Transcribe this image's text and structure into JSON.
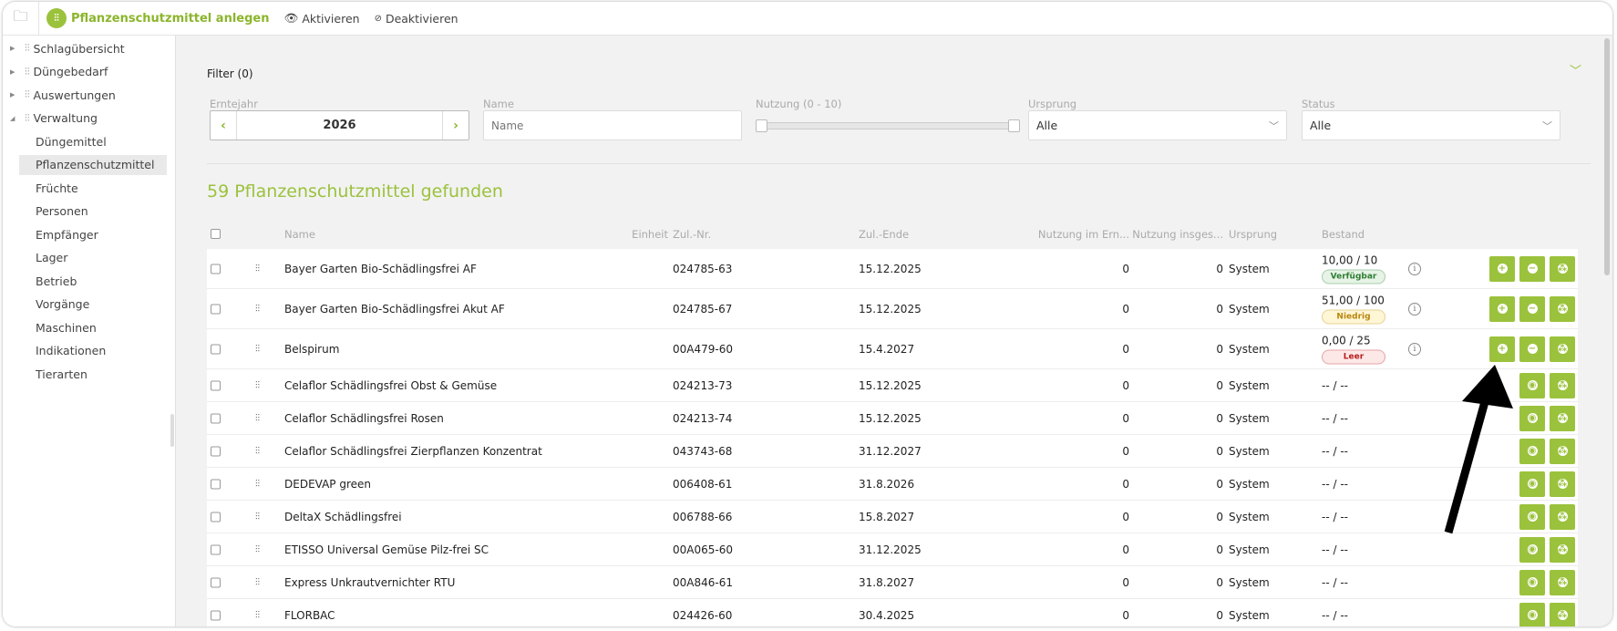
{
  "toolbar": {
    "create_label": "Pflanzenschutzmittel anlegen",
    "activate_label": "Aktivieren",
    "deactivate_label": "Deaktivieren"
  },
  "sidebar": {
    "groups": [
      {
        "label": "Schlagübersicht",
        "expanded": false
      },
      {
        "label": "Düngebedarf",
        "expanded": false
      },
      {
        "label": "Auswertungen",
        "expanded": false
      },
      {
        "label": "Verwaltung",
        "expanded": true
      }
    ],
    "items": [
      "Düngemittel",
      "Pflanzenschutzmittel",
      "Früchte",
      "Personen",
      "Empfänger",
      "Lager",
      "Betrieb",
      "Vorgänge",
      "Maschinen",
      "Indikationen",
      "Tierarten"
    ],
    "active": "Pflanzenschutzmittel"
  },
  "filter": {
    "title": "Filter (0)",
    "year_label": "Erntejahr",
    "year": "2026",
    "name_label": "Name",
    "name_placeholder": "Name",
    "name_value": "",
    "usage_label": "Nutzung (0 - 10)",
    "usage_range": [
      0,
      10
    ],
    "origin_label": "Ursprung",
    "origin_value": "Alle",
    "status_label": "Status",
    "status_value": "Alle"
  },
  "result_count": "59 Pflanzenschutzmittel gefunden",
  "table": {
    "headers": {
      "name": "Name",
      "unit": "Einheit",
      "reg_no": "Zul.-Nr.",
      "reg_end": "Zul.-Ende",
      "use_year": "Nutzung im Ern...",
      "use_total": "Nutzung insges...",
      "origin": "Ursprung",
      "stock": "Bestand"
    },
    "rows": [
      {
        "name": "Bayer Garten Bio-Schädlingsfrei AF",
        "unit": "",
        "reg_no": "024785-63",
        "reg_end": "15.12.2025",
        "use_year": "0",
        "use_total": "0",
        "origin": "System",
        "stock": "10,00 / 10",
        "status": "Verfügbar",
        "status_type": "ok",
        "active": true
      },
      {
        "name": "Bayer Garten Bio-Schädlingsfrei Akut AF",
        "unit": "",
        "reg_no": "024785-67",
        "reg_end": "15.12.2025",
        "use_year": "0",
        "use_total": "0",
        "origin": "System",
        "stock": "51,00 / 100",
        "status": "Niedrig",
        "status_type": "low",
        "active": true
      },
      {
        "name": "Belspirum",
        "unit": "",
        "reg_no": "00A479-60",
        "reg_end": "15.4.2027",
        "use_year": "0",
        "use_total": "0",
        "origin": "System",
        "stock": "0,00 / 25",
        "status": "Leer",
        "status_type": "empty",
        "active": true
      },
      {
        "name": "Celaflor Schädlingsfrei Obst & Gemüse",
        "unit": "",
        "reg_no": "024213-73",
        "reg_end": "15.12.2025",
        "use_year": "0",
        "use_total": "0",
        "origin": "System",
        "stock": "-- / --",
        "active": false
      },
      {
        "name": "Celaflor Schädlingsfrei Rosen",
        "unit": "",
        "reg_no": "024213-74",
        "reg_end": "15.12.2025",
        "use_year": "0",
        "use_total": "0",
        "origin": "System",
        "stock": "-- / --",
        "active": false
      },
      {
        "name": "Celaflor Schädlingsfrei Zierpflanzen Konzentrat",
        "unit": "",
        "reg_no": "043743-68",
        "reg_end": "31.12.2027",
        "use_year": "0",
        "use_total": "0",
        "origin": "System",
        "stock": "-- / --",
        "active": false
      },
      {
        "name": "DEDEVAP green",
        "unit": "",
        "reg_no": "006408-61",
        "reg_end": "31.8.2026",
        "use_year": "0",
        "use_total": "0",
        "origin": "System",
        "stock": "-- / --",
        "active": false
      },
      {
        "name": "DeltaX Schädlingsfrei",
        "unit": "",
        "reg_no": "006788-66",
        "reg_end": "15.8.2027",
        "use_year": "0",
        "use_total": "0",
        "origin": "System",
        "stock": "-- / --",
        "active": false
      },
      {
        "name": "ETISSO Universal Gemüse Pilz-frei SC",
        "unit": "",
        "reg_no": "00A065-60",
        "reg_end": "31.12.2025",
        "use_year": "0",
        "use_total": "0",
        "origin": "System",
        "stock": "-- / --",
        "active": false
      },
      {
        "name": "Express Unkrautvernichter RTU",
        "unit": "",
        "reg_no": "00A846-61",
        "reg_end": "31.8.2027",
        "use_year": "0",
        "use_total": "0",
        "origin": "System",
        "stock": "-- / --",
        "active": false
      },
      {
        "name": "FLORBAC",
        "unit": "",
        "reg_no": "024426-60",
        "reg_end": "30.4.2025",
        "use_year": "0",
        "use_total": "0",
        "origin": "System",
        "stock": "-- / --",
        "active": false
      }
    ]
  },
  "colors": {
    "accent": "#9bc23c",
    "ok_bg": "#e6f3e6",
    "ok_fg": "#2e7d32",
    "low_bg": "#fff6d6",
    "low_fg": "#b8860b",
    "empty_bg": "#fde8e8",
    "empty_fg": "#b71c1c"
  }
}
